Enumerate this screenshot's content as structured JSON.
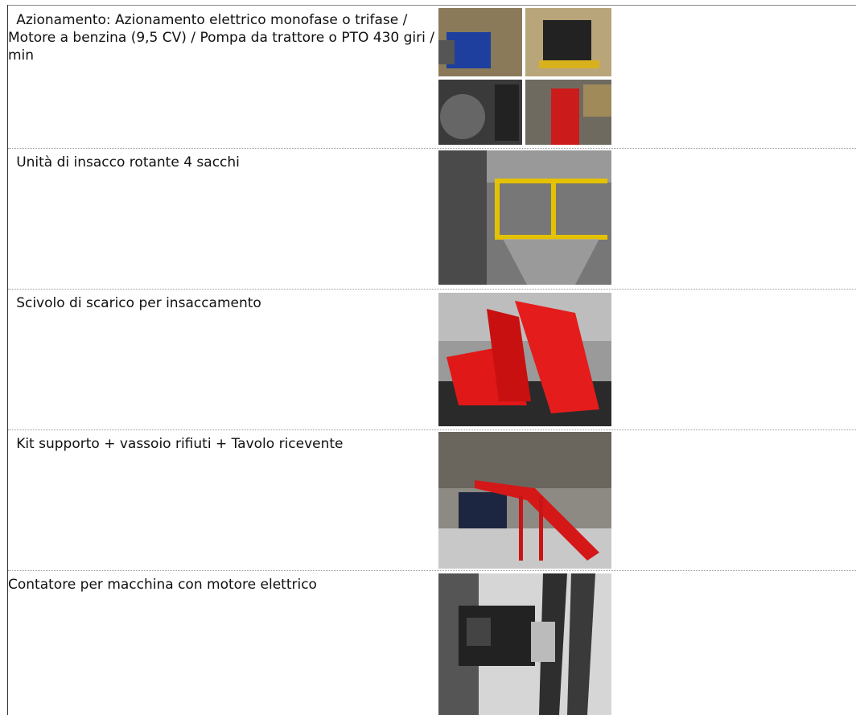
{
  "table": {
    "rows": [
      [
        "Azionamento: Azionamento elettrico monofase o trifase / Motore a benzina (9,5 CV) / Pompa da trattore o PTO 430 giri / min"
      ],
      [
        "Unità di insacco rotante 4 sacchi"
      ],
      [
        "Scivolo di scarico per insaccamento"
      ],
      [
        "Kit supporto + vassoio rifiuti + Tavolo ricevente"
      ],
      [
        "Contatore per macchina con motore elettrico"
      ]
    ]
  }
}
